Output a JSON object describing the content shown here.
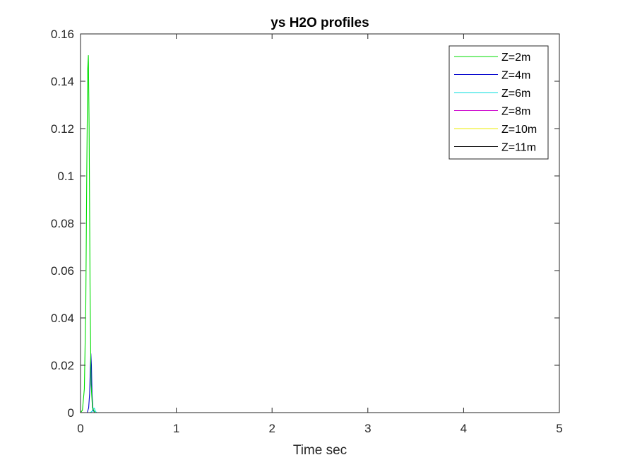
{
  "chart_data": {
    "type": "line",
    "title": "ys H2O profiles",
    "xlabel": "Time sec",
    "ylabel": "",
    "xlim": [
      0,
      5
    ],
    "ylim": [
      0,
      0.16
    ],
    "xticks": [
      0,
      1,
      2,
      3,
      4,
      5
    ],
    "xtick_labels": [
      "0",
      "1",
      "2",
      "3",
      "4",
      "5"
    ],
    "yticks": [
      0,
      0.02,
      0.04,
      0.06,
      0.08,
      0.1,
      0.12,
      0.14,
      0.16
    ],
    "ytick_labels": [
      "0",
      "0.02",
      "0.04",
      "0.06",
      "0.08",
      "0.1",
      "0.12",
      "0.14",
      "0.16"
    ],
    "grid": false,
    "legend_position": "top-right",
    "series": [
      {
        "name": "Z=2m",
        "color": "#00dd00",
        "x": [
          0,
          0.02,
          0.04,
          0.055,
          0.065,
          0.075,
          0.082,
          0.09,
          0.1,
          0.11,
          0.125,
          0.15,
          5
        ],
        "y": [
          0,
          0.001,
          0.01,
          0.045,
          0.1,
          0.145,
          0.151,
          0.12,
          0.05,
          0.012,
          0.002,
          0,
          0
        ]
      },
      {
        "name": "Z=4m",
        "color": "#0000cc",
        "x": [
          0,
          0.07,
          0.085,
          0.095,
          0.102,
          0.108,
          0.114,
          0.12,
          0.13,
          0.15,
          5
        ],
        "y": [
          0,
          0,
          0.002,
          0.008,
          0.018,
          0.025,
          0.02,
          0.008,
          0.001,
          0,
          0
        ]
      },
      {
        "name": "Z=6m",
        "color": "#00dddd",
        "x": [
          0,
          0.1,
          0.12,
          0.135,
          0.145,
          0.155,
          0.17,
          5
        ],
        "y": [
          0,
          0,
          0.0005,
          0.0018,
          0.0018,
          0.0005,
          0,
          0
        ]
      },
      {
        "name": "Z=8m",
        "color": "#cc00cc",
        "x": [
          0,
          5
        ],
        "y": [
          0,
          0
        ]
      },
      {
        "name": "Z=10m",
        "color": "#eeee00",
        "x": [
          0,
          5
        ],
        "y": [
          0,
          0
        ]
      },
      {
        "name": "Z=11m",
        "color": "#000000",
        "x": [
          0,
          5
        ],
        "y": [
          0,
          0
        ]
      }
    ]
  }
}
